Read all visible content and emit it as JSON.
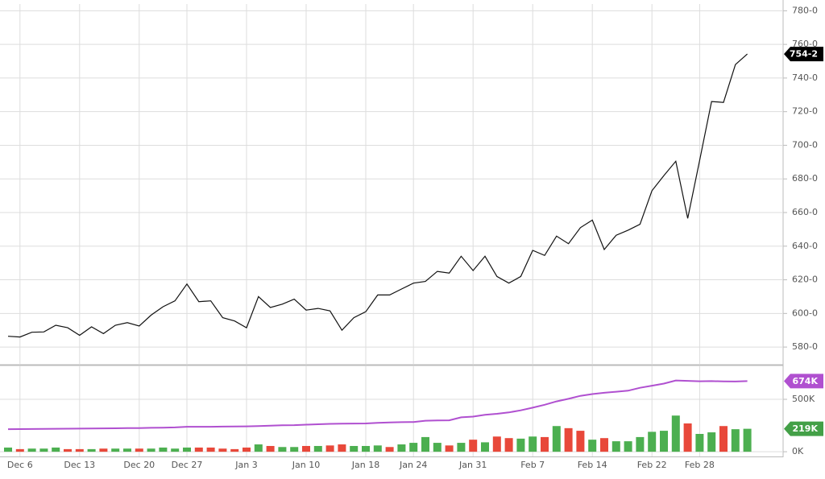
{
  "chart_data": [
    {
      "type": "line",
      "ylim": [
        570,
        784
      ],
      "yticks": [
        {
          "value": 580,
          "label": "580-0"
        },
        {
          "value": 600,
          "label": "600-0"
        },
        {
          "value": 620,
          "label": "620-0"
        },
        {
          "value": 640,
          "label": "640-0"
        },
        {
          "value": 660,
          "label": "660-0"
        },
        {
          "value": 680,
          "label": "680-0"
        },
        {
          "value": 700,
          "label": "700-0"
        },
        {
          "value": 720,
          "label": "720-0"
        },
        {
          "value": 740,
          "label": "740-0"
        },
        {
          "value": 760,
          "label": "760-0"
        },
        {
          "value": 780,
          "label": "780-0"
        }
      ],
      "grid": true,
      "series": [
        {
          "color": "#111111",
          "label_color": "#000000",
          "last_value_label": "754-2",
          "values": [
            586.4,
            586,
            588.8,
            589,
            593,
            591.5,
            587,
            592,
            588,
            593,
            594.5,
            592.5,
            599,
            604,
            607.5,
            617.5,
            607,
            607.5,
            597.5,
            595.5,
            591.5,
            610,
            603.5,
            605.5,
            608.5,
            602,
            603,
            601.5,
            590,
            597.5,
            601,
            611,
            611,
            614.5,
            618,
            619,
            625,
            624,
            634,
            625.5,
            634,
            622,
            618,
            622,
            637.5,
            634.5,
            646,
            641.5,
            651,
            655.5,
            638,
            646.5,
            649.5,
            653,
            673,
            682,
            690.5,
            656.5,
            691,
            726,
            725.5,
            748,
            754.25
          ]
        }
      ]
    },
    {
      "type": "bar",
      "categories": [
        null,
        "Dec 6",
        null,
        null,
        null,
        null,
        "Dec 13",
        null,
        null,
        null,
        null,
        "Dec 20",
        null,
        null,
        null,
        "Dec 27",
        null,
        null,
        null,
        null,
        "Jan 3",
        null,
        null,
        null,
        null,
        "Jan 10",
        null,
        null,
        null,
        null,
        "Jan 18",
        null,
        null,
        null,
        "Jan 24",
        null,
        null,
        null,
        null,
        "Jan 31",
        null,
        null,
        null,
        null,
        "Feb 7",
        null,
        null,
        null,
        null,
        "Feb 14",
        null,
        null,
        null,
        null,
        "Feb 22",
        null,
        null,
        null,
        "Feb 28",
        null,
        null,
        null,
        null
      ],
      "ylim": [
        -45000,
        815000
      ],
      "yticks": [
        {
          "value": 0,
          "label": "0K"
        },
        {
          "value": 500000,
          "label": "500K"
        }
      ],
      "grid": true,
      "series": [
        {
          "type": "bar",
          "label_color": "#43a047",
          "last_value_label": "219K",
          "values": [
            40000,
            25000,
            30000,
            30000,
            40000,
            25000,
            25000,
            25000,
            30000,
            30000,
            30000,
            30000,
            30000,
            40000,
            30000,
            40000,
            40000,
            40000,
            30000,
            25000,
            40000,
            70000,
            55000,
            45000,
            45000,
            55000,
            55000,
            60000,
            70000,
            55000,
            55000,
            60000,
            45000,
            70000,
            85000,
            140000,
            85000,
            60000,
            85000,
            115000,
            90000,
            145000,
            130000,
            125000,
            145000,
            140000,
            245000,
            225000,
            200000,
            115000,
            130000,
            100000,
            100000,
            140000,
            190000,
            200000,
            345000,
            270000,
            170000,
            185000,
            245000,
            215000,
            219000
          ],
          "colors": [
            "#4caf50",
            "#e8483a",
            "#4caf50",
            "#4caf50",
            "#4caf50",
            "#e8483a",
            "#e8483a",
            "#4caf50",
            "#e8483a",
            "#4caf50",
            "#4caf50",
            "#e8483a",
            "#4caf50",
            "#4caf50",
            "#4caf50",
            "#4caf50",
            "#e8483a",
            "#e8483a",
            "#e8483a",
            "#e8483a",
            "#e8483a",
            "#4caf50",
            "#e8483a",
            "#4caf50",
            "#4caf50",
            "#e8483a",
            "#4caf50",
            "#e8483a",
            "#e8483a",
            "#4caf50",
            "#4caf50",
            "#4caf50",
            "#e8483a",
            "#4caf50",
            "#4caf50",
            "#4caf50",
            "#4caf50",
            "#e8483a",
            "#4caf50",
            "#e8483a",
            "#4caf50",
            "#e8483a",
            "#e8483a",
            "#4caf50",
            "#4caf50",
            "#e8483a",
            "#4caf50",
            "#e8483a",
            "#e8483a",
            "#4caf50",
            "#e8483a",
            "#4caf50",
            "#4caf50",
            "#4caf50",
            "#4caf50",
            "#4caf50",
            "#4caf50",
            "#e8483a",
            "#4caf50",
            "#4caf50",
            "#e8483a",
            "#4caf50",
            "#4caf50"
          ]
        },
        {
          "type": "line",
          "color": "#b050d0",
          "label_color": "#b050d0",
          "last_value_label": "674K",
          "values": [
            215000,
            216000,
            217000,
            218000,
            219000,
            220000,
            221000,
            222000,
            223000,
            224000,
            225000,
            226000,
            228000,
            230000,
            232000,
            238000,
            238000,
            238000,
            240000,
            241000,
            242000,
            245000,
            248000,
            252000,
            254000,
            258000,
            262000,
            266000,
            268000,
            269000,
            270000,
            276000,
            280000,
            282000,
            284000,
            296000,
            298000,
            300000,
            328000,
            335000,
            352000,
            362000,
            375000,
            395000,
            420000,
            448000,
            480000,
            505000,
            533000,
            550000,
            562000,
            572000,
            582000,
            610000,
            630000,
            650000,
            680000,
            676000,
            672000,
            674000,
            671000,
            670000,
            674000
          ]
        }
      ]
    }
  ]
}
